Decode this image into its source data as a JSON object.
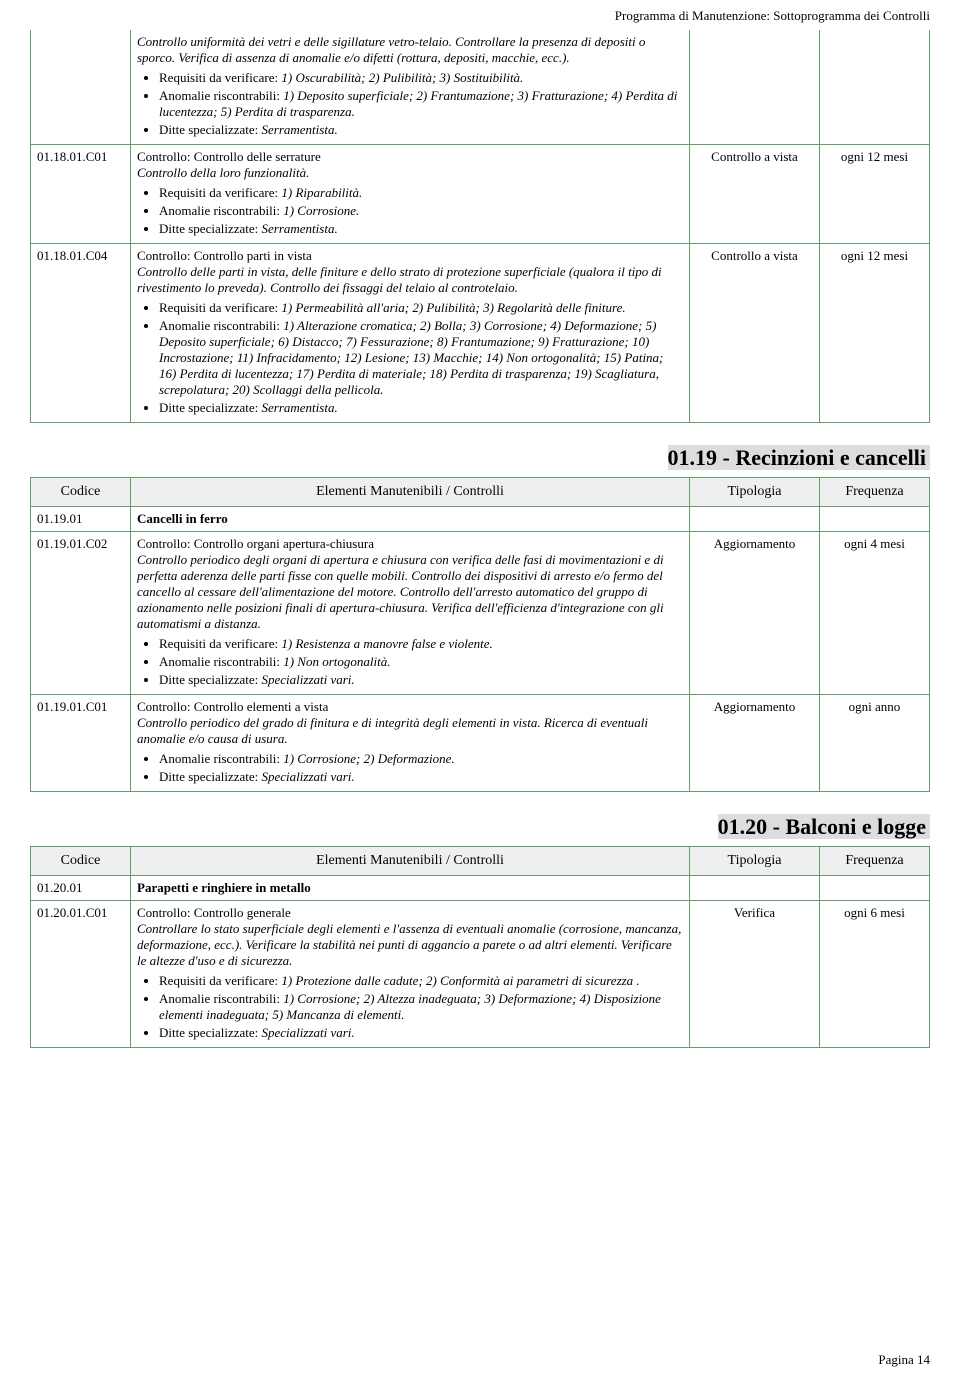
{
  "header": {
    "title": "Programma di Manutenzione: Sottoprogramma dei Controlli"
  },
  "footer": {
    "page": "Pagina 14"
  },
  "sections": [
    {
      "continuation": true,
      "rows": [
        {
          "code": "",
          "desc_html": "<span class='italic'>Controllo uniformità dei vetri e delle sigillature vetro-telaio. Controllare la presenza di depositi o sporco. Verifica di assenza di anomalie e/o difetti (rottura, depositi, macchie, ecc.).</span><ul class='bullets'><li>Requisiti da verificare: <span class='italic'>1) Oscurabilità; 2) Pulibilità; 3) Sostituibilità.</span></li><li>Anomalie riscontrabili: <span class='italic'>1) Deposito superficiale; 2) Frantumazione; 3) Fratturazione; 4) Perdita di lucentezza; 5) Perdita di trasparenza.</span></li><li>Ditte specializzate: <span class='italic'>Serramentista.</span></li></ul>",
          "tipologia": "",
          "frequenza": "",
          "openTop": true
        },
        {
          "code": "01.18.01.C01",
          "desc_html": "<span class='ctrl-title'>Controllo: Controllo delle serrature</span><br><span class='italic'>Controllo della loro funzionalità.</span><ul class='bullets'><li>Requisiti da verificare: <span class='italic'>1) Riparabilità.</span></li><li>Anomalie riscontrabili: <span class='italic'>1) Corrosione.</span></li><li>Ditte specializzate: <span class='italic'>Serramentista.</span></li></ul>",
          "tipologia": "Controllo a vista",
          "frequenza": "ogni 12 mesi"
        },
        {
          "code": "01.18.01.C04",
          "desc_html": "<span class='ctrl-title'>Controllo: Controllo parti in vista</span><br><span class='italic'>Controllo delle parti in vista, delle finiture e dello strato di protezione superficiale (qualora il tipo di rivestimento lo preveda). Controllo dei fissaggi del telaio al controtelaio.</span><ul class='bullets'><li>Requisiti da verificare: <span class='italic'>1) Permeabilità all'aria; 2) Pulibilità; 3) Regolarità delle finiture.</span></li><li>Anomalie riscontrabili: <span class='italic'>1) Alterazione cromatica; 2) Bolla; 3) Corrosione; 4) Deformazione; 5) Deposito superficiale; 6) Distacco; 7) Fessurazione; 8) Frantumazione; 9) Fratturazione; 10) Incrostazione; 11) Infracidamento; 12) Lesione; 13) Macchie; 14) Non ortogonalità; 15) Patina; 16) Perdita di lucentezza; 17) Perdita di materiale; 18) Perdita di trasparenza; 19) Scagliatura, screpolatura; 20) Scollaggi della pellicola.</span></li><li>Ditte specializzate: <span class='italic'>Serramentista.</span></li></ul>",
          "tipologia": "Controllo a vista",
          "frequenza": "ogni 12 mesi"
        }
      ]
    },
    {
      "title": "01.19 - Recinzioni e cancelli",
      "headers": {
        "c1": "Codice",
        "c2": "Elementi Manutenibili / Controlli",
        "c3": "Tipologia",
        "c4": "Frequenza"
      },
      "rows": [
        {
          "code": "01.19.01",
          "desc_html": "<span class='elem-title'>Cancelli in ferro</span>",
          "tipologia": "",
          "frequenza": ""
        },
        {
          "code": "01.19.01.C02",
          "desc_html": "<span class='ctrl-title'>Controllo: Controllo organi apertura-chiusura</span><br><span class='italic'>Controllo periodico degli organi di apertura e chiusura con verifica delle fasi di movimentazioni e di perfetta aderenza delle parti fisse con quelle mobili. Controllo dei dispositivi di arresto e/o fermo del cancello al cessare dell'alimentazione del motore. Controllo dell'arresto automatico del gruppo di azionamento nelle posizioni finali di apertura-chiusura. Verifica dell'efficienza d'integrazione con gli automatismi a distanza.</span><ul class='bullets'><li>Requisiti da verificare: <span class='italic'>1) Resistenza a manovre false e violente.</span></li><li>Anomalie riscontrabili: <span class='italic'>1) Non ortogonalità.</span></li><li>Ditte specializzate: <span class='italic'>Specializzati vari.</span></li></ul>",
          "tipologia": "Aggiornamento",
          "frequenza": "ogni 4 mesi"
        },
        {
          "code": "01.19.01.C01",
          "desc_html": "<span class='ctrl-title'>Controllo: Controllo elementi a vista</span><br><span class='italic'>Controllo periodico del grado di finitura e di integrità degli elementi in vista. Ricerca di eventuali anomalie e/o causa di usura.</span><ul class='bullets'><li>Anomalie riscontrabili: <span class='italic'>1) Corrosione; 2) Deformazione.</span></li><li>Ditte specializzate: <span class='italic'>Specializzati vari.</span></li></ul>",
          "tipologia": "Aggiornamento",
          "frequenza": "ogni anno"
        }
      ]
    },
    {
      "title": "01.20 - Balconi e logge",
      "headers": {
        "c1": "Codice",
        "c2": "Elementi Manutenibili / Controlli",
        "c3": "Tipologia",
        "c4": "Frequenza"
      },
      "rows": [
        {
          "code": "01.20.01",
          "desc_html": "<span class='elem-title'>Parapetti e ringhiere in metallo</span>",
          "tipologia": "",
          "frequenza": ""
        },
        {
          "code": "01.20.01.C01",
          "desc_html": "<span class='ctrl-title'>Controllo: Controllo generale</span><br><span class='italic'>Controllare lo stato superficiale degli elementi e l'assenza di eventuali anomalie (corrosione, mancanza, deformazione, ecc.). Verificare la stabilità nei punti di aggancio a parete o ad altri elementi. Verificare le altezze d'uso e di sicurezza.</span><ul class='bullets'><li>Requisiti da verificare: <span class='italic'>1) Protezione dalle cadute; 2) Conformità ai parametri di sicurezza .</span></li><li>Anomalie riscontrabili: <span class='italic'>1) Corrosione; 2) Altezza inadeguata; 3) Deformazione; 4) Disposizione elementi inadeguata; 5) Mancanza di elementi.</span></li><li>Ditte specializzate: <span class='italic'>Specializzati vari.</span></li></ul>",
          "tipologia": "Verifica",
          "frequenza": "ogni 6 mesi"
        }
      ]
    }
  ]
}
